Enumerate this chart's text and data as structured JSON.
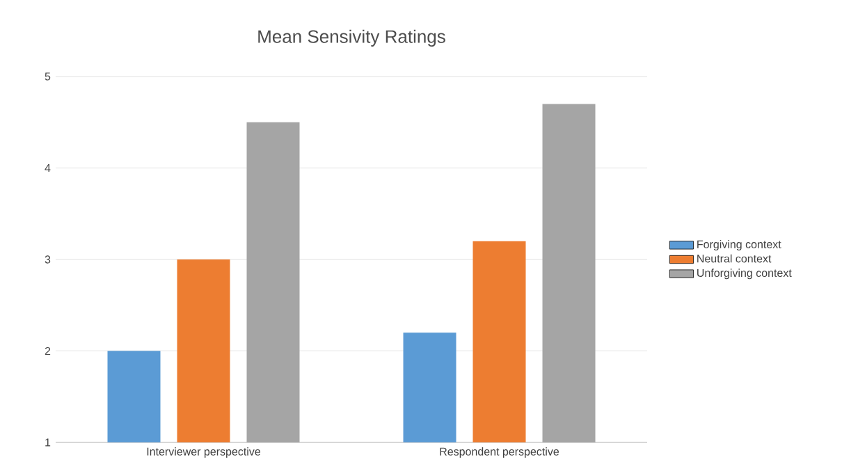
{
  "chart_data": {
    "type": "bar",
    "title": "Mean Sensivity Ratings",
    "categories": [
      "Interviewer perspective",
      "Respondent perspective"
    ],
    "series": [
      {
        "name": "Forgiving context",
        "color": "#5b9bd5",
        "values": [
          2.0,
          2.2
        ]
      },
      {
        "name": "Neutral context",
        "color": "#ed7d31",
        "values": [
          3.0,
          3.2
        ]
      },
      {
        "name": "Unforgiving context",
        "color": "#a5a5a5",
        "values": [
          4.5,
          4.7
        ]
      }
    ],
    "ylim": [
      1,
      5
    ],
    "yticks": [
      1,
      2,
      3,
      4,
      5
    ],
    "grid": "y",
    "legend": "right"
  }
}
